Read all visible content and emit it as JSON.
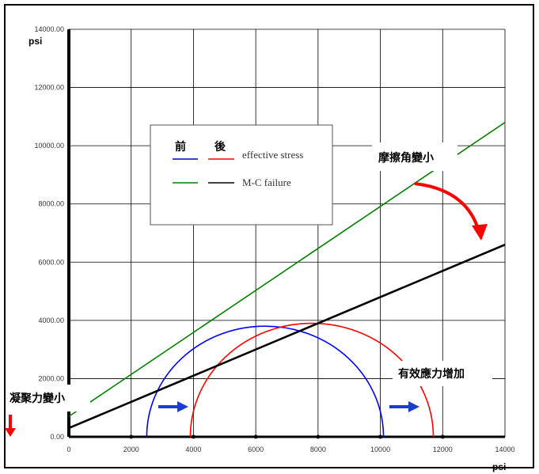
{
  "chart_data": {
    "type": "line",
    "xlabel": "psi",
    "ylabel": "psi",
    "xlim": [
      0,
      14000
    ],
    "ylim": [
      0,
      14000
    ],
    "x_ticks": [
      0,
      2000,
      4000,
      6000,
      8000,
      10000,
      12000,
      14000
    ],
    "x_tick_labels": [
      "0",
      "2000",
      "4000",
      "6000",
      "8000",
      "10000",
      "12000",
      "14000"
    ],
    "y_ticks": [
      0,
      2000,
      4000,
      6000,
      8000,
      10000,
      12000,
      14000
    ],
    "y_tick_labels": [
      "0.00",
      "2000.00",
      "4000.00",
      "6000.00",
      "8000.00",
      "10000.00",
      "12000.00",
      "14000.00"
    ],
    "grid": true,
    "legend": {
      "position": "upper-left",
      "header_before": "前",
      "header_after": "後",
      "rows": [
        {
          "label": "effective stress",
          "before_color": "#0000cc",
          "after_color": "#ff0000"
        },
        {
          "label": "M-C failure",
          "before_color": "#008000",
          "after_color": "#000000"
        }
      ]
    },
    "circles": [
      {
        "role": "before",
        "center": 6300,
        "radius": 3800,
        "color": "#0000ff"
      },
      {
        "role": "after",
        "center": 7800,
        "radius": 3900,
        "color": "#ff0000"
      }
    ],
    "lines": [
      {
        "role": "before",
        "x": [
          0,
          14000
        ],
        "y": [
          700,
          10800
        ],
        "color": "#008000"
      },
      {
        "role": "after",
        "x": [
          0,
          14000
        ],
        "y": [
          300,
          6600
        ],
        "color": "#000000"
      }
    ],
    "baseline_markers_x": [
      2000,
      4000,
      6000,
      8000,
      10000,
      12000
    ],
    "annotations": {
      "friction": "摩擦角變小",
      "effective": "有效應力增加",
      "cohesion": "凝聚力變小"
    },
    "colors": {
      "arrow_red": "#ff0000",
      "arrow_blue": "#1a3fcc"
    }
  }
}
